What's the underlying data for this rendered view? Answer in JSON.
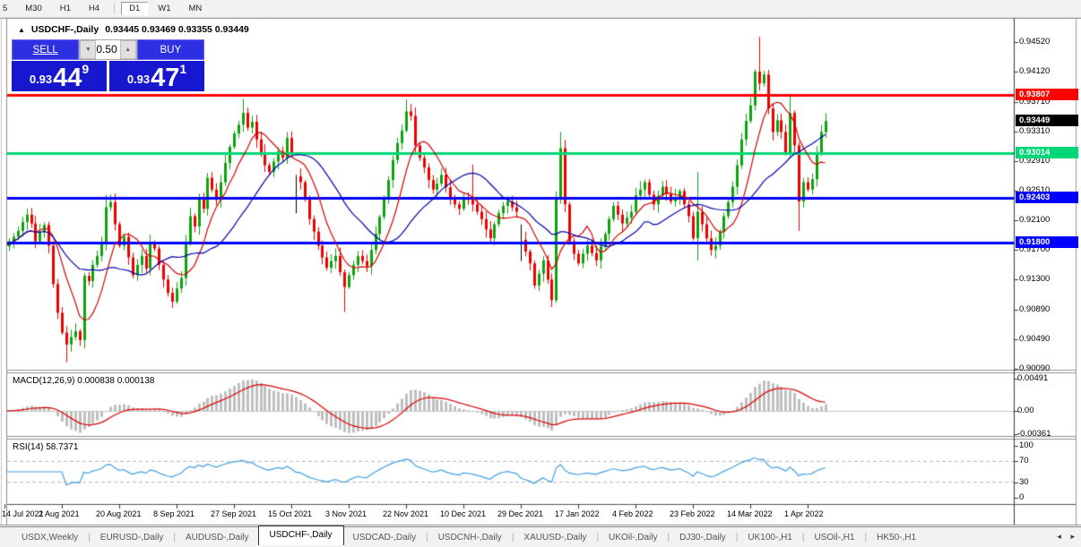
{
  "toolbar": {
    "timeframes": [
      {
        "label": "5"
      },
      {
        "label": "M30"
      },
      {
        "label": "H1"
      },
      {
        "label": "H4"
      },
      {
        "label": "D1"
      },
      {
        "label": "W1"
      },
      {
        "label": "MN"
      }
    ],
    "active": "D1"
  },
  "chart": {
    "symbol_line": {
      "marker": "▲",
      "title": "USDCHF-,Daily",
      "ohlc": "0.93445 0.93469 0.93355 0.93449"
    },
    "trade_panel": {
      "sell_label": "SELL",
      "buy_label": "BUY",
      "volume": "0.50",
      "down_glyph": "▼",
      "up_glyph": "▲",
      "sell_small": "0.93",
      "sell_big": "44",
      "sell_sup": "9",
      "buy_small": "0.93",
      "buy_big": "47",
      "buy_sup": "1"
    },
    "price_axis_ticks": [
      "0.94520",
      "0.94120",
      "0.93710",
      "0.93310",
      "0.92910",
      "0.92510",
      "0.92100",
      "0.91700",
      "0.91300",
      "0.90890",
      "0.90490",
      "0.90090"
    ],
    "price_badges": [
      {
        "value": "0.93807",
        "price": 0.93807,
        "color": "#ff0000"
      },
      {
        "value": "0.93449",
        "price": 0.93449,
        "color": "#000000"
      },
      {
        "value": "0.93014",
        "price": 0.93014,
        "color": "#00d878"
      },
      {
        "value": "0.92403",
        "price": 0.92403,
        "color": "#0000ff"
      },
      {
        "value": "0.91800",
        "price": 0.918,
        "color": "#0000ff"
      }
    ],
    "levels": [
      {
        "price": 0.93807,
        "color": "#ff0000",
        "width": 3
      },
      {
        "price": 0.93014,
        "color": "#00d878",
        "width": 3
      },
      {
        "price": 0.92403,
        "color": "#0000ff",
        "width": 3
      },
      {
        "price": 0.918,
        "color": "#0000ff",
        "width": 3
      }
    ],
    "date_axis": [
      "14 Jul 2021",
      "2 Aug 2021",
      "20 Aug 2021",
      "8 Sep 2021",
      "27 Sep 2021",
      "15 Oct 2021",
      "3 Nov 2021",
      "22 Nov 2021",
      "10 Dec 2021",
      "29 Dec 2021",
      "17 Jan 2022",
      "4 Feb 2022",
      "23 Feb 2022",
      "14 Mar 2022",
      "1 Apr 2022"
    ]
  },
  "indicators": {
    "macd": {
      "label": "MACD(12,26,9)",
      "values": "0.000838 0.000138",
      "axis": [
        "0.00491",
        "0.00",
        "-0.00361"
      ],
      "histogram_color": "#bfbfbf",
      "signal_color": "#dd0000"
    },
    "rsi": {
      "label": "RSI(14)",
      "value": "58.7371",
      "axis": [
        "100",
        "70",
        "30",
        "0"
      ],
      "levels": [
        70,
        30
      ],
      "line_color": "#3e9ee8"
    }
  },
  "tabs": {
    "items": [
      "USDX,Weekly",
      "EURUSD-,Daily",
      "AUDUSD-,Daily",
      "USDCHF-,Daily",
      "USDCAD-,Daily",
      "USDCNH-,Daily",
      "XAUUSD-,Daily",
      "UKOil-,Daily",
      "DJ30-,Daily",
      "UK100-,H1",
      "USOil-,H1",
      "HK50-,H1"
    ],
    "active_index": 3,
    "scroll_left_glyph": "◂",
    "scroll_right_glyph": "▸"
  },
  "chart_data": {
    "type": "candlestick",
    "symbol": "USDCHF",
    "timeframe": "Daily",
    "title": "USDCHF-,Daily",
    "price_range": [
      0.9008,
      0.9476
    ],
    "up_color": "#0ca30c",
    "down_color": "#ee0000",
    "ma_fast_color": "#d40000",
    "ma_slow_color": "#0000b0",
    "ma_fast_period": 8,
    "ma_slow_period": 21,
    "closes": [
      0.9175,
      0.9182,
      0.9188,
      0.9196,
      0.9208,
      0.9218,
      0.9206,
      0.9182,
      0.9194,
      0.9204,
      0.9176,
      0.9124,
      0.9085,
      0.9058,
      0.9042,
      0.9052,
      0.906,
      0.9048,
      0.9135,
      0.9128,
      0.915,
      0.9162,
      0.918,
      0.9228,
      0.9235,
      0.9205,
      0.9176,
      0.9188,
      0.916,
      0.9136,
      0.915,
      0.9162,
      0.9145,
      0.918,
      0.9172,
      0.915,
      0.913,
      0.9112,
      0.91,
      0.9118,
      0.9132,
      0.918,
      0.9216,
      0.9202,
      0.9242,
      0.9226,
      0.9268,
      0.9252,
      0.9238,
      0.9262,
      0.9288,
      0.931,
      0.9328,
      0.934,
      0.9356,
      0.9336,
      0.9344,
      0.932,
      0.9302,
      0.9285,
      0.9276,
      0.929,
      0.9304,
      0.9295,
      0.9322,
      0.93,
      0.927,
      0.9262,
      0.924,
      0.9212,
      0.9195,
      0.9176,
      0.916,
      0.9146,
      0.9155,
      0.9162,
      0.914,
      0.912,
      0.9136,
      0.915,
      0.9162,
      0.9155,
      0.9148,
      0.917,
      0.9192,
      0.9215,
      0.924,
      0.9265,
      0.9292,
      0.9315,
      0.9332,
      0.9358,
      0.9352,
      0.9312,
      0.9295,
      0.9282,
      0.9265,
      0.9252,
      0.926,
      0.9272,
      0.9255,
      0.9242,
      0.9232,
      0.9226,
      0.9242,
      0.9238,
      0.9232,
      0.9222,
      0.9212,
      0.9198,
      0.9186,
      0.9205,
      0.922,
      0.923,
      0.9236,
      0.9228,
      0.9222,
      0.9184,
      0.9168,
      0.9152,
      0.9122,
      0.9138,
      0.9156,
      0.913,
      0.9102,
      0.924,
      0.9308,
      0.9232,
      0.9182,
      0.9165,
      0.9152,
      0.9165,
      0.9176,
      0.9166,
      0.9156,
      0.9175,
      0.9192,
      0.9212,
      0.923,
      0.9218,
      0.9206,
      0.9214,
      0.9222,
      0.9244,
      0.9252,
      0.9262,
      0.9245,
      0.9232,
      0.9244,
      0.9256,
      0.9246,
      0.9236,
      0.9242,
      0.925,
      0.9232,
      0.9216,
      0.9186,
      0.9222,
      0.9205,
      0.9186,
      0.917,
      0.9176,
      0.9195,
      0.9216,
      0.9235,
      0.9256,
      0.9285,
      0.932,
      0.9345,
      0.9366,
      0.9412,
      0.9396,
      0.9408,
      0.9362,
      0.933,
      0.9346,
      0.933,
      0.9302,
      0.9356,
      0.9312,
      0.9236,
      0.9262,
      0.9252,
      0.9266,
      0.9302,
      0.933,
      0.9345
    ],
    "wick_overrides": {
      "14": {
        "l": 0.9018
      },
      "23": {
        "h": 0.9245
      },
      "54": {
        "h": 0.9375
      },
      "66": {
        "h": 0.9272,
        "l": 0.922,
        "black": true
      },
      "77": {
        "l": 0.9086
      },
      "91": {
        "h": 0.9374
      },
      "106": {
        "h": 0.9286
      },
      "117": {
        "h": 0.9205,
        "l": 0.9155,
        "black": true
      },
      "126": {
        "h": 0.933
      },
      "157": {
        "h": 0.9276,
        "l": 0.9156
      },
      "171": {
        "h": 0.9459
      },
      "178": {
        "h": 0.9382
      },
      "180": {
        "l": 0.9196
      }
    }
  }
}
